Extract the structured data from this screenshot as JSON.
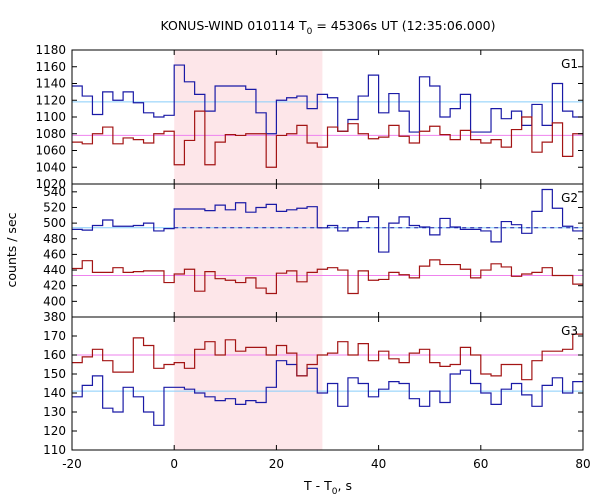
{
  "title_prefix": "KONUS-WIND 010114 T",
  "title_sub": "0",
  "title_suffix": " = 45306s UT (12:35:06.000)",
  "xlabel_prefix": "T - T",
  "xlabel_sub": "0",
  "xlabel_suffix": ", s",
  "ylabel": "counts / sec",
  "colors": {
    "blue": "#1a1aa6",
    "red": "#a31414",
    "cyan": "#87cefa",
    "pink": "#ee82ee",
    "shade": "#fde6e9"
  },
  "chart_data": {
    "type": "line",
    "step": true,
    "xlim": [
      -20,
      80
    ],
    "x_ticks": [
      "-20",
      "0",
      "20",
      "40",
      "60",
      "80"
    ],
    "x_tick_values": [
      -20,
      0,
      20,
      40,
      60,
      80
    ],
    "shaded_interval": [
      0,
      29
    ],
    "bin_edges": [
      -20,
      -18,
      -16,
      -14,
      -12,
      -10,
      -8,
      -6,
      -4,
      -2,
      0,
      2,
      4,
      6,
      8,
      10,
      12,
      14,
      16,
      18,
      20,
      22,
      24,
      26,
      28,
      30,
      32,
      34,
      36,
      38,
      40,
      42,
      44,
      46,
      48,
      50,
      52,
      54,
      56,
      58,
      60,
      62,
      64,
      66,
      68,
      70,
      72,
      74,
      76,
      78,
      80
    ],
    "panels": [
      {
        "name": "G1",
        "ylim": [
          1020,
          1180
        ],
        "y_ticks": [
          "1020",
          "1040",
          "1060",
          "1080",
          "1100",
          "1120",
          "1140",
          "1160",
          "1180"
        ],
        "y_tick_values": [
          1020,
          1040,
          1060,
          1080,
          1100,
          1120,
          1140,
          1160,
          1180
        ],
        "series": [
          {
            "color": "blue",
            "values": [
              1137,
              1125,
              1103,
              1130,
              1120,
              1130,
              1117,
              1105,
              1100,
              1102,
              1162,
              1142,
              1127,
              1107,
              1137,
              1137,
              1137,
              1133,
              1105,
              1080,
              1120,
              1123,
              1125,
              1110,
              1127,
              1123,
              1083,
              1097,
              1125,
              1150,
              1105,
              1128,
              1107,
              1082,
              1148,
              1137,
              1100,
              1110,
              1127,
              1082,
              1082,
              1110,
              1098,
              1107,
              1090,
              1115,
              1090,
              1140,
              1107,
              1100
            ]
          },
          {
            "color": "red",
            "values": [
              1070,
              1068,
              1080,
              1088,
              1068,
              1075,
              1073,
              1069,
              1080,
              1083,
              1043,
              1072,
              1107,
              1043,
              1070,
              1079,
              1078,
              1080,
              1080,
              1040,
              1078,
              1080,
              1090,
              1069,
              1064,
              1088,
              1083,
              1092,
              1080,
              1074,
              1076,
              1090,
              1077,
              1069,
              1083,
              1089,
              1079,
              1073,
              1084,
              1073,
              1069,
              1073,
              1064,
              1085,
              1100,
              1058,
              1070,
              1093,
              1053,
              1080
            ]
          }
        ],
        "refs": [
          {
            "color": "cyan",
            "y": 1118
          },
          {
            "color": "pink",
            "y": 1078
          }
        ]
      },
      {
        "name": "G2",
        "ylim": [
          380,
          550
        ],
        "y_ticks": [
          "380",
          "400",
          "420",
          "440",
          "460",
          "480",
          "500",
          "520",
          "540"
        ],
        "y_tick_values": [
          380,
          400,
          420,
          440,
          460,
          480,
          500,
          520,
          540
        ],
        "series": [
          {
            "color": "blue",
            "values": [
              492,
              491,
              497,
              504,
              496,
              496,
              497,
              500,
              490,
              493,
              518,
              518,
              518,
              516,
              523,
              517,
              526,
              514,
              520,
              524,
              515,
              517,
              519,
              521,
              494,
              497,
              490,
              494,
              502,
              508,
              463,
              500,
              508,
              497,
              495,
              485,
              506,
              495,
              492,
              492,
              490,
              476,
              502,
              498,
              487,
              515,
              543,
              519,
              496,
              490
            ]
          },
          {
            "color": "red",
            "values": [
              442,
              452,
              437,
              437,
              443,
              437,
              438,
              439,
              439,
              424,
              435,
              441,
              413,
              438,
              429,
              427,
              424,
              430,
              417,
              410,
              436,
              439,
              425,
              437,
              441,
              443,
              440,
              410,
              439,
              427,
              428,
              437,
              434,
              430,
              445,
              453,
              447,
              447,
              441,
              430,
              440,
              448,
              444,
              432,
              435,
              437,
              443,
              433,
              433,
              422
            ]
          }
        ],
        "refs": [
          {
            "color": "cyan",
            "y": 494
          },
          {
            "color": "pink",
            "y": 433
          },
          {
            "color": "blue",
            "y": 494,
            "x_from": 0,
            "x_to": 80,
            "dashed": true
          }
        ]
      },
      {
        "name": "G3",
        "ylim": [
          110,
          180
        ],
        "y_ticks": [
          "110",
          "120",
          "130",
          "140",
          "150",
          "160",
          "170"
        ],
        "y_tick_values": [
          110,
          120,
          130,
          140,
          150,
          160,
          170
        ],
        "series": [
          {
            "color": "blue",
            "values": [
              138,
              144,
              149,
              132,
              130,
              143,
              138,
              130,
              123,
              143,
              143,
              142,
              140,
              138,
              136,
              137,
              134,
              136,
              135,
              143,
              157,
              155,
              149,
              153,
              140,
              145,
              133,
              148,
              145,
              138,
              142,
              146,
              145,
              137,
              133,
              141,
              135,
              150,
              152,
              145,
              140,
              134,
              142,
              145,
              139,
              133,
              144,
              148,
              140,
              146
            ]
          },
          {
            "color": "red",
            "values": [
              156,
              159,
              163,
              157,
              151,
              151,
              169,
              165,
              153,
              155,
              156,
              153,
              163,
              167,
              160,
              168,
              162,
              164,
              164,
              160,
              165,
              161,
              149,
              155,
              160,
              161,
              167,
              160,
              166,
              157,
              162,
              158,
              156,
              161,
              163,
              156,
              154,
              155,
              164,
              160,
              150,
              149,
              155,
              155,
              147,
              157,
              162,
              162,
              163,
              171
            ]
          }
        ],
        "refs": [
          {
            "color": "pink",
            "y": 160
          },
          {
            "color": "cyan",
            "y": 141
          }
        ]
      }
    ]
  }
}
